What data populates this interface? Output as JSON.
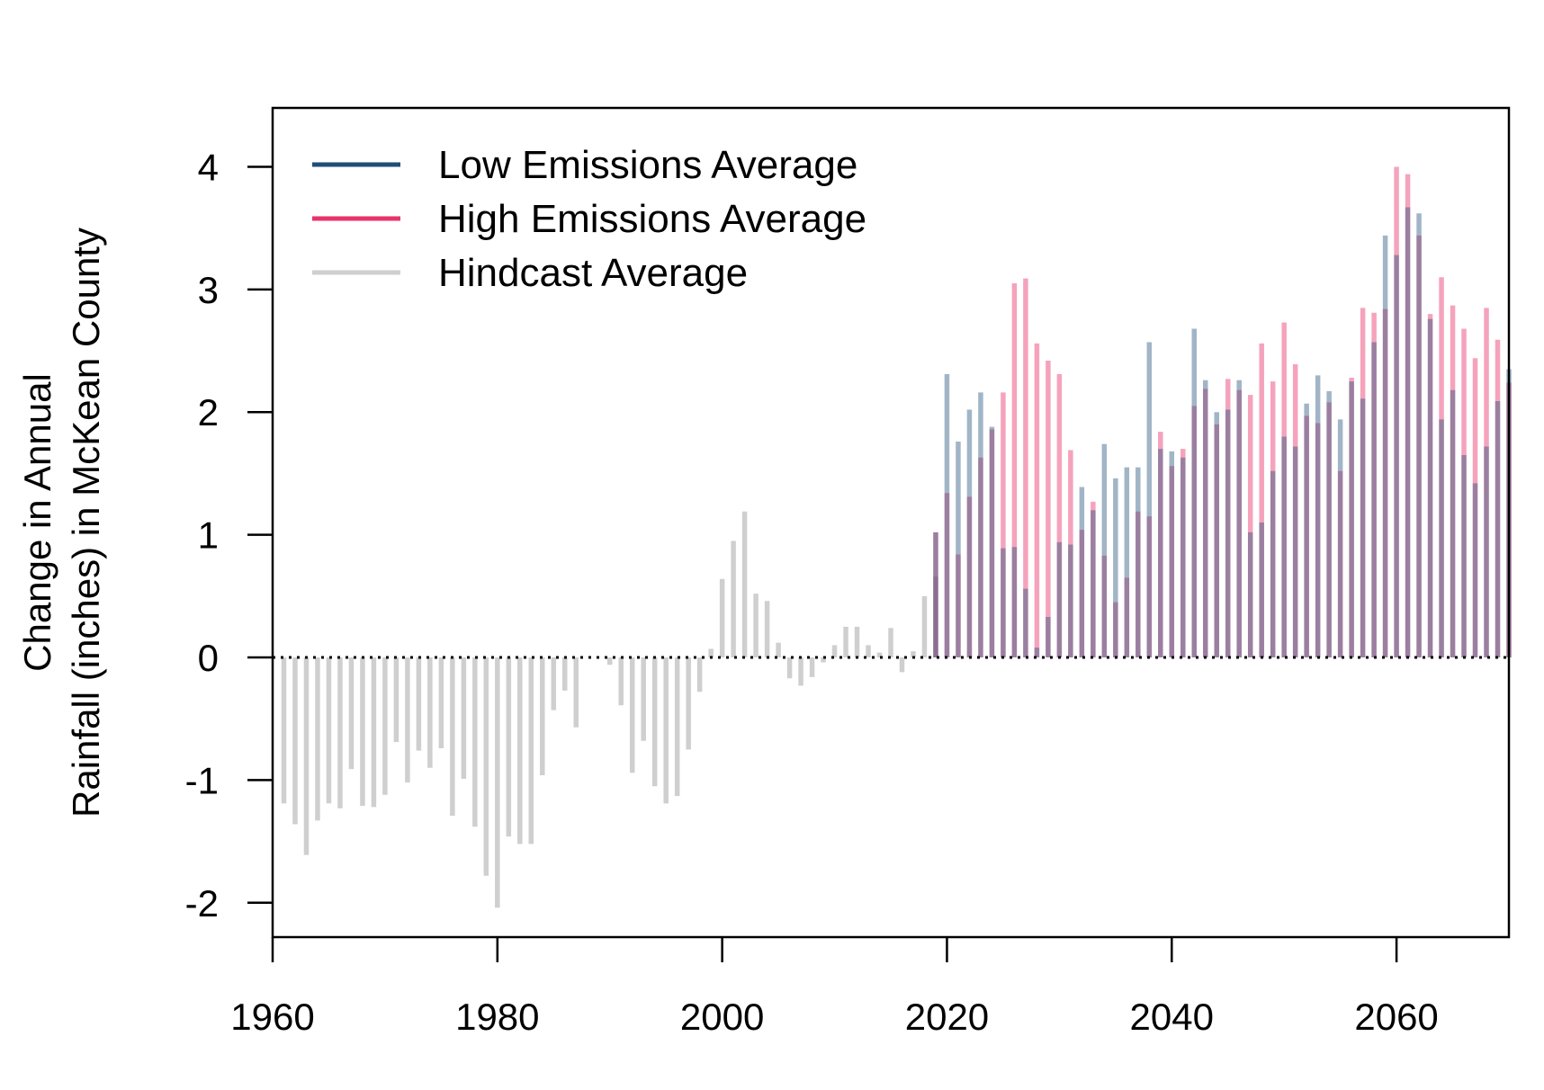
{
  "chart_data": {
    "type": "bar",
    "ylabel_lines": [
      "Change in Annual",
      "Rainfall (inches) in McKean County"
    ],
    "xlabel": "",
    "xlim": [
      1960,
      2070
    ],
    "ylim": [
      -2.28,
      4.48
    ],
    "x_ticks": [
      1960,
      1980,
      2000,
      2020,
      2040,
      2060
    ],
    "y_ticks": [
      -2,
      -1,
      0,
      1,
      2,
      3,
      4
    ],
    "x_tick_labels": [
      "1960",
      "1980",
      "2000",
      "2020",
      "2040",
      "2060"
    ],
    "y_tick_labels": [
      "-2",
      "-1",
      "0",
      "1",
      "2",
      "3",
      "4"
    ],
    "reference_line": 0,
    "legend": {
      "position": "top-left",
      "entries": [
        {
          "label": "Low Emissions Average",
          "color": "#1f4e79"
        },
        {
          "label": "High Emissions Average",
          "color": "#e8336b"
        },
        {
          "label": "Hindcast Average",
          "color": "#cfcfcf"
        }
      ]
    },
    "series": [
      {
        "name": "Hindcast Average",
        "color": "#cfcfcf",
        "x": [
          1961,
          1962,
          1963,
          1964,
          1965,
          1966,
          1967,
          1968,
          1969,
          1970,
          1971,
          1972,
          1973,
          1974,
          1975,
          1976,
          1977,
          1978,
          1979,
          1980,
          1981,
          1982,
          1983,
          1984,
          1985,
          1986,
          1987,
          1988,
          1989,
          1990,
          1991,
          1992,
          1993,
          1994,
          1995,
          1996,
          1997,
          1998,
          1999,
          2000,
          2001,
          2002,
          2003,
          2004,
          2005,
          2006,
          2007,
          2008,
          2009,
          2010,
          2011,
          2012,
          2013,
          2014,
          2015,
          2016,
          2017,
          2018,
          2019
        ],
        "values": [
          -1.19,
          -1.36,
          -1.61,
          -1.33,
          -1.19,
          -1.23,
          -0.91,
          -1.21,
          -1.22,
          -1.12,
          -0.69,
          -1.02,
          -0.76,
          -0.9,
          -0.74,
          -1.29,
          -0.99,
          -1.38,
          -1.78,
          -2.04,
          -1.46,
          -1.52,
          -1.52,
          -0.96,
          -0.43,
          -0.27,
          -0.57,
          0.0,
          0.0,
          -0.06,
          -0.39,
          -0.94,
          -0.68,
          -1.05,
          -1.19,
          -1.13,
          -0.75,
          -0.28,
          0.07,
          0.64,
          0.95,
          1.19,
          0.52,
          0.46,
          0.12,
          -0.17,
          -0.23,
          -0.16,
          -0.04,
          0.1,
          0.25,
          0.25,
          0.1,
          0.04,
          0.24,
          -0.12,
          0.05,
          0.5,
          0.66
        ]
      },
      {
        "name": "Low Emissions Average",
        "color": "#1f4e79",
        "x": [
          2019,
          2020,
          2021,
          2022,
          2023,
          2024,
          2025,
          2026,
          2027,
          2028,
          2029,
          2030,
          2031,
          2032,
          2033,
          2034,
          2035,
          2036,
          2037,
          2038,
          2039,
          2040,
          2041,
          2042,
          2043,
          2044,
          2045,
          2046,
          2047,
          2048,
          2049,
          2050,
          2051,
          2052,
          2053,
          2054,
          2055,
          2056,
          2057,
          2058,
          2059,
          2060,
          2061,
          2062,
          2063,
          2064,
          2065,
          2066,
          2067,
          2068,
          2069,
          2070
        ],
        "values": [
          1.02,
          2.31,
          1.76,
          2.02,
          2.16,
          1.88,
          0.89,
          0.9,
          0.56,
          0.08,
          0.33,
          0.94,
          0.92,
          1.39,
          1.2,
          1.74,
          1.46,
          1.55,
          1.55,
          2.57,
          1.7,
          1.68,
          1.63,
          2.68,
          2.26,
          2.0,
          2.02,
          2.26,
          1.02,
          1.1,
          1.52,
          1.8,
          1.72,
          2.07,
          2.3,
          2.17,
          1.94,
          2.25,
          2.11,
          2.57,
          3.44,
          3.28,
          3.67,
          3.62,
          2.76,
          1.94,
          2.18,
          1.65,
          1.42,
          1.72,
          2.09,
          2.35
        ]
      },
      {
        "name": "High Emissions Average",
        "color": "#e8336b",
        "x": [
          2019,
          2020,
          2021,
          2022,
          2023,
          2024,
          2025,
          2026,
          2027,
          2028,
          2029,
          2030,
          2031,
          2032,
          2033,
          2034,
          2035,
          2036,
          2037,
          2038,
          2039,
          2040,
          2041,
          2042,
          2043,
          2044,
          2045,
          2046,
          2047,
          2048,
          2049,
          2050,
          2051,
          2052,
          2053,
          2054,
          2055,
          2056,
          2057,
          2058,
          2059,
          2060,
          2061,
          2062,
          2063,
          2064,
          2065,
          2066,
          2067,
          2068,
          2069,
          2070
        ],
        "values": [
          1.02,
          1.34,
          0.84,
          1.31,
          1.63,
          1.86,
          2.16,
          3.05,
          3.09,
          2.56,
          2.42,
          2.31,
          1.69,
          1.04,
          1.27,
          0.83,
          0.45,
          0.65,
          1.19,
          1.15,
          1.84,
          1.56,
          1.7,
          2.05,
          2.19,
          1.9,
          2.27,
          2.18,
          2.14,
          2.56,
          2.25,
          2.73,
          2.39,
          1.97,
          1.91,
          2.08,
          1.52,
          2.28,
          2.85,
          2.81,
          2.84,
          4.0,
          3.94,
          3.44,
          2.8,
          3.1,
          2.87,
          2.68,
          2.44,
          2.85,
          2.59,
          2.24
        ]
      }
    ]
  }
}
